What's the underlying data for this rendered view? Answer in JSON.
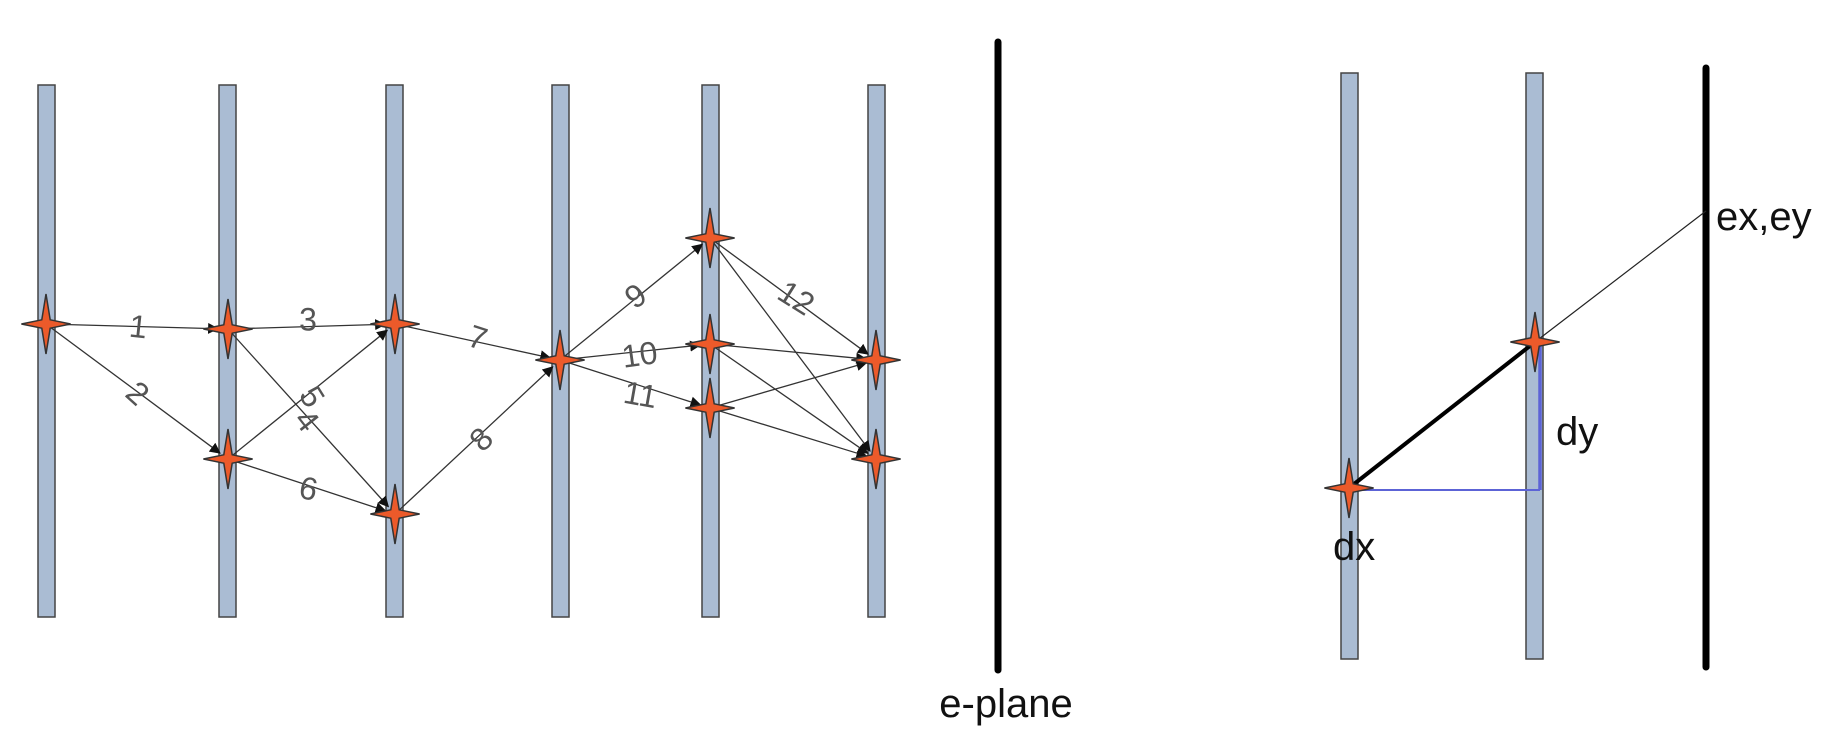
{
  "colors": {
    "bar_fill": "#aabcd3",
    "bar_stroke": "#444444",
    "star_fill": "#ec5a2a",
    "star_stroke": "#333333",
    "edge": "#333333",
    "plane": "#000000",
    "projection": "#5c63d6"
  },
  "left_diagram": {
    "plane_label": "e-plane",
    "edges": [
      {
        "label": "1"
      },
      {
        "label": "2"
      },
      {
        "label": "3"
      },
      {
        "label": "4"
      },
      {
        "label": "5"
      },
      {
        "label": "6"
      },
      {
        "label": "7"
      },
      {
        "label": "8"
      },
      {
        "label": "9"
      },
      {
        "label": "10"
      },
      {
        "label": "11"
      },
      {
        "label": "12"
      }
    ]
  },
  "right_diagram": {
    "point_label": "ex,ey",
    "dx_label": "dx",
    "dy_label": "dy"
  }
}
